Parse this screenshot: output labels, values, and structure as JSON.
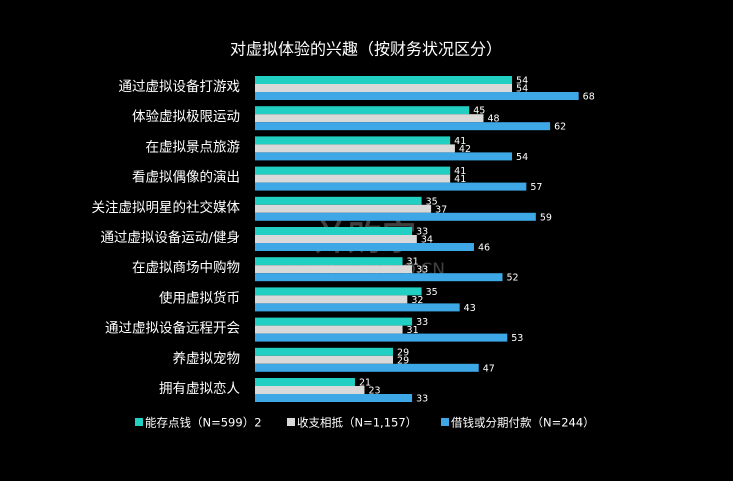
{
  "chart_data": {
    "type": "hbar",
    "title": "对虚拟体验的兴趣（按财务状况区分）",
    "categories": [
      "通过虚拟设备打游戏",
      "体验虚拟极限运动",
      "在虚拟景点旅游",
      "看虚拟偶像的演出",
      "关注虚拟明星的社交媒体",
      "通过虚拟设备运动/健身",
      "在虚拟商场中购物",
      "使用虚拟货币",
      "通过虚拟设备远程开会",
      "养虚拟宠物",
      "拥有虚拟恋人"
    ],
    "series": [
      {
        "name": "能存点钱（N=599）2",
        "color": "#22cfc3",
        "values": [
          54,
          45,
          41,
          41,
          35,
          33,
          31,
          35,
          33,
          29,
          21
        ]
      },
      {
        "name": "收支相抵（N=1,157）",
        "color": "#d9d9d9",
        "values": [
          54,
          48,
          42,
          41,
          37,
          34,
          33,
          32,
          31,
          29,
          23
        ]
      },
      {
        "name": "借钱或分期付款（N=244）",
        "color": "#3ea8e6",
        "values": [
          68,
          62,
          54,
          57,
          59,
          46,
          52,
          43,
          53,
          47,
          33
        ]
      }
    ],
    "xlim": [
      0,
      100
    ],
    "watermark": [
      "并购家",
      "行业报告 IPOIPO.CN"
    ]
  }
}
